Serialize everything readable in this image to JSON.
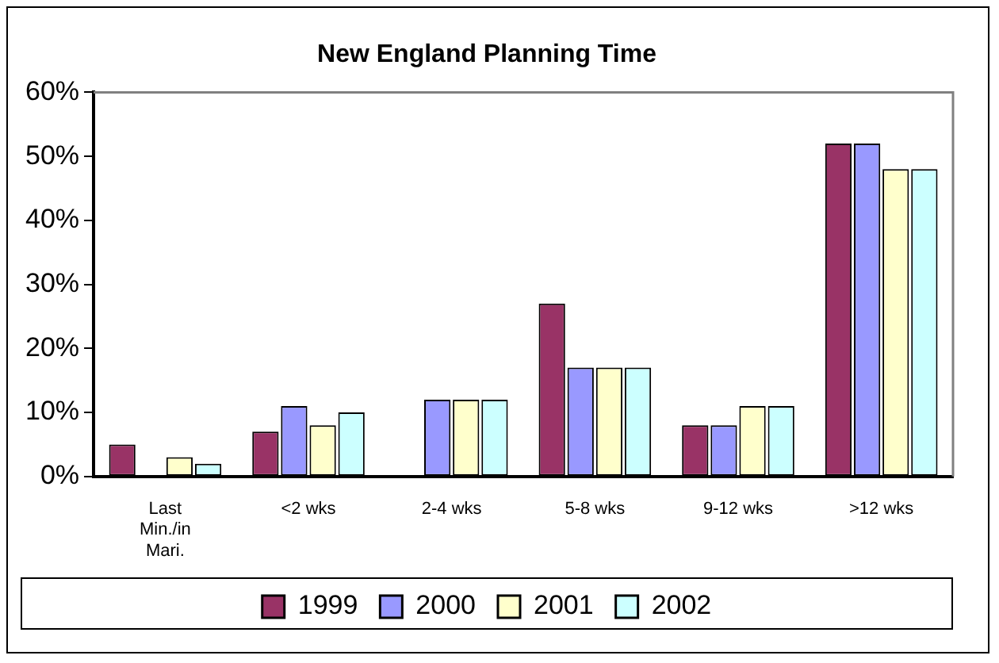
{
  "chart_data": {
    "type": "bar",
    "title": "New England Planning Time",
    "categories": [
      "Last Min./in Mari.",
      "<2 wks",
      "2-4 wks",
      "5-8 wks",
      "9-12 wks",
      ">12 wks"
    ],
    "series": [
      {
        "name": "1999",
        "color": "#993366",
        "values": [
          5,
          7,
          0,
          27,
          8,
          52
        ]
      },
      {
        "name": "2000",
        "color": "#9999ff",
        "values": [
          0,
          11,
          12,
          17,
          8,
          52
        ]
      },
      {
        "name": "2001",
        "color": "#ffffcc",
        "values": [
          3,
          8,
          12,
          17,
          11,
          48
        ]
      },
      {
        "name": "2002",
        "color": "#ccffff",
        "values": [
          2,
          10,
          12,
          17,
          11,
          48
        ]
      }
    ],
    "ylim": [
      0,
      60
    ],
    "yticks": [
      {
        "value": 0,
        "label": "0%"
      },
      {
        "value": 10,
        "label": "10%"
      },
      {
        "value": 20,
        "label": "20%"
      },
      {
        "value": 30,
        "label": "30%"
      },
      {
        "value": 40,
        "label": "40%"
      },
      {
        "value": 50,
        "label": "50%"
      },
      {
        "value": 60,
        "label": "60%"
      }
    ],
    "grid": false,
    "legend": "bottom"
  }
}
